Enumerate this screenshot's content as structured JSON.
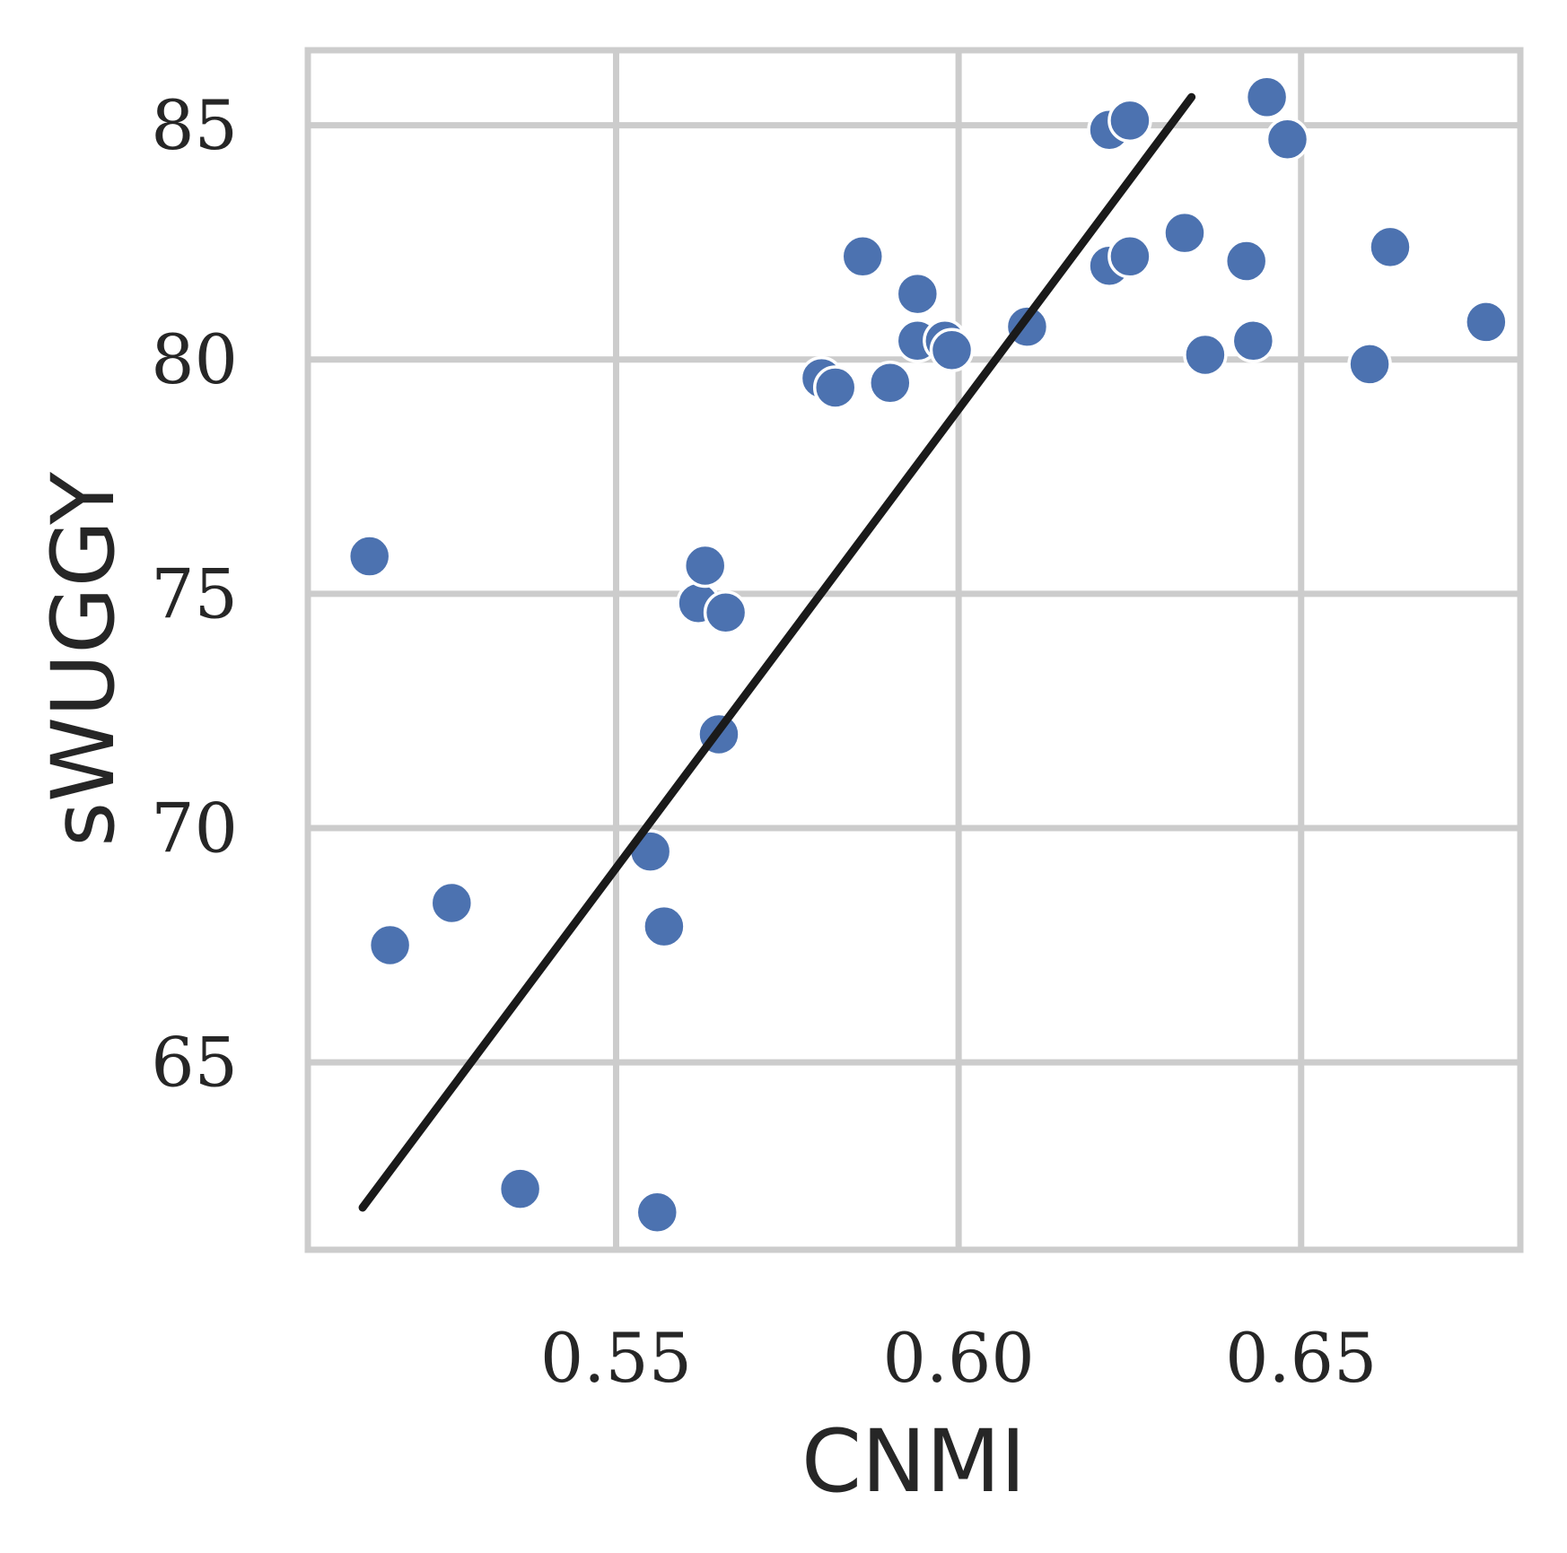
{
  "chart_data": {
    "type": "scatter",
    "xlabel": "CNMI",
    "ylabel": "sWUGGY",
    "xlim": [
      0.505,
      0.682
    ],
    "ylim": [
      61.0,
      86.6
    ],
    "xticks": [
      0.55,
      0.6,
      0.65
    ],
    "xtick_labels": [
      "0.55",
      "0.60",
      "0.65"
    ],
    "yticks": [
      65,
      70,
      75,
      80,
      85
    ],
    "ytick_labels": [
      "65",
      "70",
      "75",
      "80",
      "85"
    ],
    "grid": true,
    "legend": "none",
    "series": [
      {
        "type": "scatter",
        "color": "#4C72B0",
        "x": [
          0.514,
          0.517,
          0.526,
          0.536,
          0.555,
          0.556,
          0.557,
          0.562,
          0.563,
          0.565,
          0.566,
          0.58,
          0.582,
          0.586,
          0.59,
          0.594,
          0.594,
          0.598,
          0.599,
          0.61,
          0.622,
          0.622,
          0.625,
          0.625,
          0.633,
          0.636,
          0.642,
          0.643,
          0.645,
          0.648,
          0.66,
          0.663,
          0.677
        ],
        "y": [
          75.8,
          67.5,
          68.4,
          62.3,
          69.5,
          61.8,
          67.9,
          74.8,
          75.6,
          72.0,
          74.6,
          79.6,
          79.4,
          82.2,
          79.5,
          81.4,
          80.4,
          80.4,
          80.2,
          80.7,
          84.9,
          82.0,
          85.1,
          82.2,
          82.7,
          80.1,
          82.1,
          80.4,
          85.6,
          84.7,
          79.9,
          82.4,
          80.8
        ]
      }
    ],
    "trend_line": {
      "type": "line",
      "color": "#1a1a1a",
      "x": [
        0.513,
        0.634
      ],
      "y": [
        61.9,
        85.6
      ]
    }
  }
}
